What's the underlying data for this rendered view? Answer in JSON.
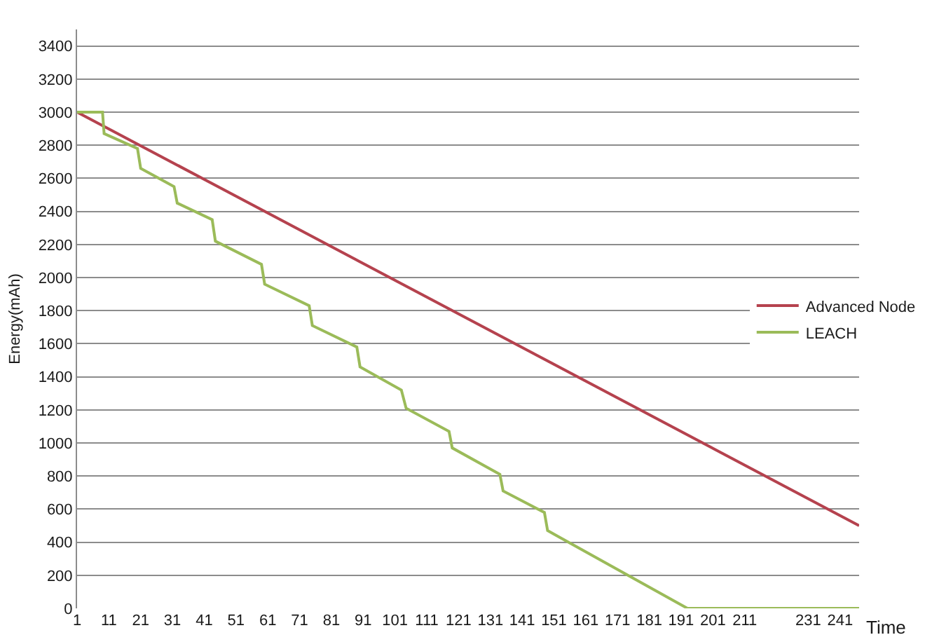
{
  "chart_data": {
    "type": "line",
    "xlabel": "Time",
    "ylabel": "Energy(mAh)",
    "xlim": [
      1,
      247
    ],
    "xticks": [
      1,
      11,
      21,
      31,
      41,
      51,
      61,
      71,
      81,
      91,
      101,
      111,
      121,
      131,
      141,
      151,
      161,
      171,
      181,
      191,
      201,
      211,
      231,
      241
    ],
    "ylim": [
      0,
      3500
    ],
    "yticks": [
      0,
      200,
      400,
      600,
      800,
      1000,
      1200,
      1400,
      1600,
      1800,
      2000,
      2200,
      2400,
      2600,
      2800,
      3000,
      3200,
      3400
    ],
    "grid": "y",
    "legend": "right",
    "series": [
      {
        "name": "Advanced Node",
        "color": "#b5424e",
        "x": [
          1,
          247
        ],
        "values": [
          3000,
          500
        ]
      },
      {
        "name": "LEACH",
        "color": "#9bbb59",
        "x": [
          1,
          9,
          9.5,
          20,
          21,
          31.5,
          32.5,
          43.5,
          44.5,
          59,
          60,
          74,
          75,
          89,
          90,
          103,
          104.5,
          118,
          119,
          134,
          135,
          148,
          149,
          193,
          247
        ],
        "values": [
          3000,
          3000,
          2870,
          2780,
          2660,
          2550,
          2450,
          2350,
          2220,
          2080,
          1960,
          1830,
          1710,
          1580,
          1460,
          1320,
          1210,
          1070,
          970,
          810,
          710,
          580,
          470,
          0,
          0
        ]
      }
    ]
  }
}
